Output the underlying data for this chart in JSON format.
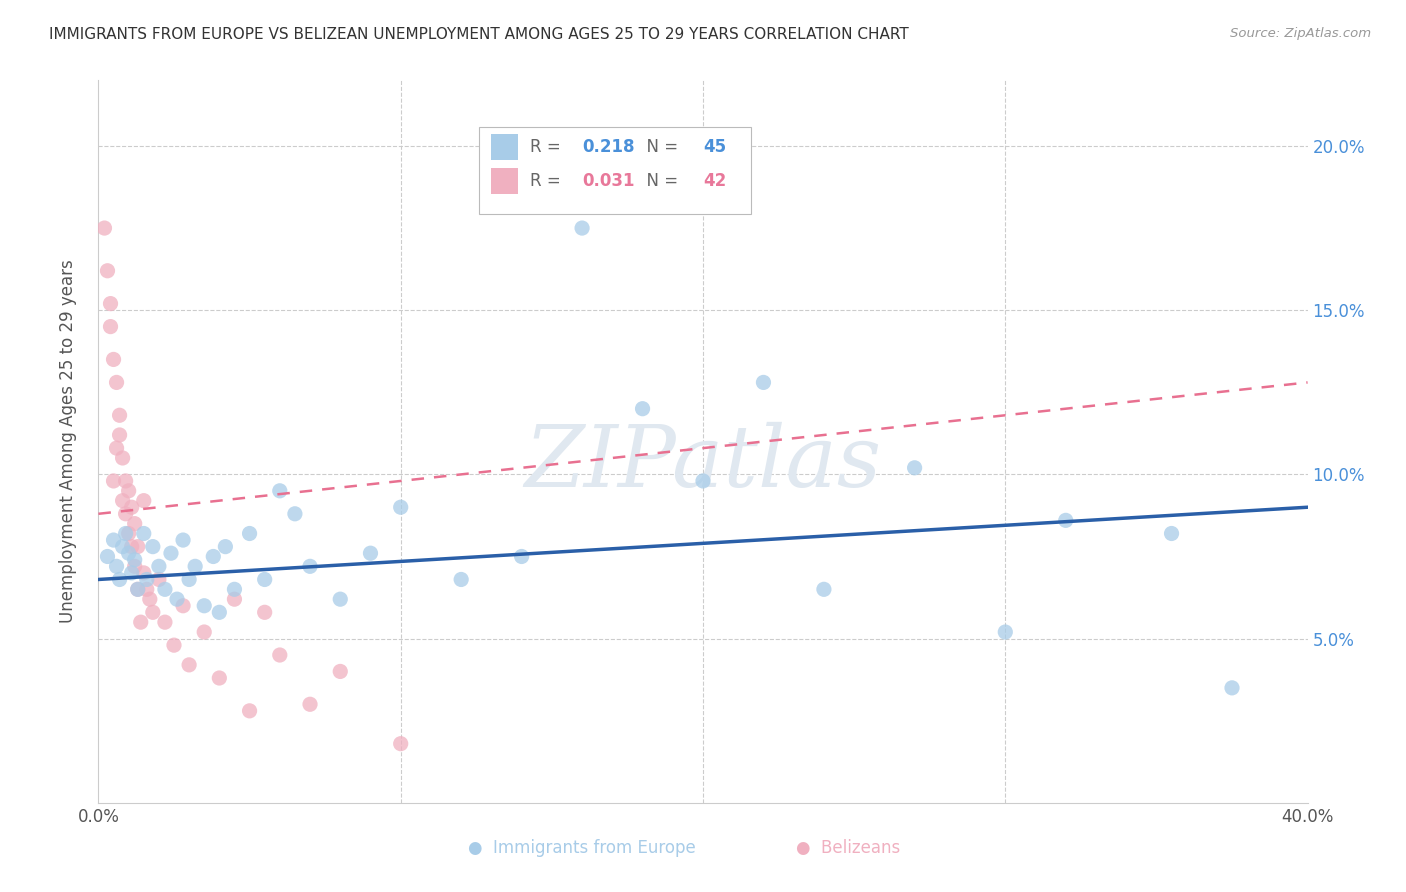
{
  "title": "IMMIGRANTS FROM EUROPE VS BELIZEAN UNEMPLOYMENT AMONG AGES 25 TO 29 YEARS CORRELATION CHART",
  "source": "Source: ZipAtlas.com",
  "ylabel": "Unemployment Among Ages 25 to 29 years",
  "xlim": [
    0.0,
    0.4
  ],
  "ylim": [
    0.0,
    0.22
  ],
  "color_blue": "#a8cce8",
  "color_pink": "#f0b0c0",
  "color_blue_text": "#4a90d9",
  "color_pink_text": "#e8789a",
  "color_blue_line": "#2a5fa8",
  "color_pink_line": "#e87090",
  "watermark": "ZIPatlas",
  "watermark_color": "#e0e8f0",
  "grid_color": "#cccccc",
  "bg_color": "#ffffff",
  "title_color": "#333333",
  "source_color": "#999999",
  "legend_r1": "0.218",
  "legend_n1": "45",
  "legend_r2": "0.031",
  "legend_n2": "42",
  "legend_label1": "Immigrants from Europe",
  "legend_label2": "Belizeans",
  "blue_line_x0": 0.0,
  "blue_line_y0": 0.068,
  "blue_line_x1": 0.4,
  "blue_line_y1": 0.09,
  "pink_line_x0": 0.0,
  "pink_line_y0": 0.088,
  "pink_line_x1": 0.4,
  "pink_line_y1": 0.128,
  "scatter_blue_x": [
    0.003,
    0.005,
    0.006,
    0.007,
    0.008,
    0.009,
    0.01,
    0.011,
    0.012,
    0.013,
    0.015,
    0.016,
    0.018,
    0.02,
    0.022,
    0.024,
    0.026,
    0.028,
    0.03,
    0.032,
    0.035,
    0.038,
    0.04,
    0.042,
    0.045,
    0.05,
    0.055,
    0.06,
    0.065,
    0.07,
    0.08,
    0.09,
    0.1,
    0.12,
    0.14,
    0.16,
    0.18,
    0.2,
    0.22,
    0.24,
    0.27,
    0.3,
    0.32,
    0.355,
    0.375
  ],
  "scatter_blue_y": [
    0.075,
    0.08,
    0.072,
    0.068,
    0.078,
    0.082,
    0.076,
    0.07,
    0.074,
    0.065,
    0.082,
    0.068,
    0.078,
    0.072,
    0.065,
    0.076,
    0.062,
    0.08,
    0.068,
    0.072,
    0.06,
    0.075,
    0.058,
    0.078,
    0.065,
    0.082,
    0.068,
    0.095,
    0.088,
    0.072,
    0.062,
    0.076,
    0.09,
    0.068,
    0.075,
    0.175,
    0.12,
    0.098,
    0.128,
    0.065,
    0.102,
    0.052,
    0.086,
    0.082,
    0.035
  ],
  "scatter_pink_x": [
    0.002,
    0.003,
    0.004,
    0.004,
    0.005,
    0.005,
    0.006,
    0.006,
    0.007,
    0.007,
    0.008,
    0.008,
    0.009,
    0.009,
    0.01,
    0.01,
    0.011,
    0.011,
    0.012,
    0.012,
    0.013,
    0.013,
    0.014,
    0.015,
    0.015,
    0.016,
    0.017,
    0.018,
    0.02,
    0.022,
    0.025,
    0.028,
    0.03,
    0.035,
    0.04,
    0.045,
    0.05,
    0.055,
    0.06,
    0.07,
    0.08,
    0.1
  ],
  "scatter_pink_y": [
    0.175,
    0.162,
    0.145,
    0.152,
    0.098,
    0.135,
    0.108,
    0.128,
    0.118,
    0.112,
    0.092,
    0.105,
    0.088,
    0.098,
    0.082,
    0.095,
    0.078,
    0.09,
    0.072,
    0.085,
    0.065,
    0.078,
    0.055,
    0.07,
    0.092,
    0.065,
    0.062,
    0.058,
    0.068,
    0.055,
    0.048,
    0.06,
    0.042,
    0.052,
    0.038,
    0.062,
    0.028,
    0.058,
    0.045,
    0.03,
    0.04,
    0.018
  ]
}
